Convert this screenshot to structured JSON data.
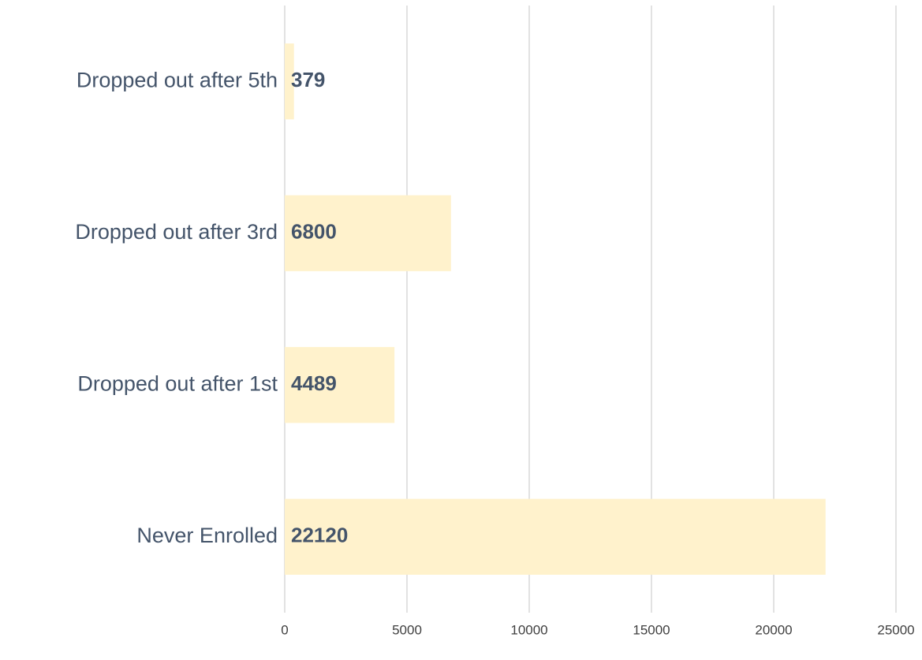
{
  "chart_data": {
    "type": "bar",
    "orientation": "horizontal",
    "categories": [
      "Dropped out after 5th",
      "Dropped out after 3rd",
      "Dropped out after 1st",
      "Never Enrolled"
    ],
    "values": [
      379,
      6800,
      4489,
      22120
    ],
    "color": "#fff2cc",
    "xlim": [
      0,
      25000
    ],
    "xticks": [
      0,
      5000,
      10000,
      15000,
      20000,
      25000
    ],
    "grid": true
  }
}
